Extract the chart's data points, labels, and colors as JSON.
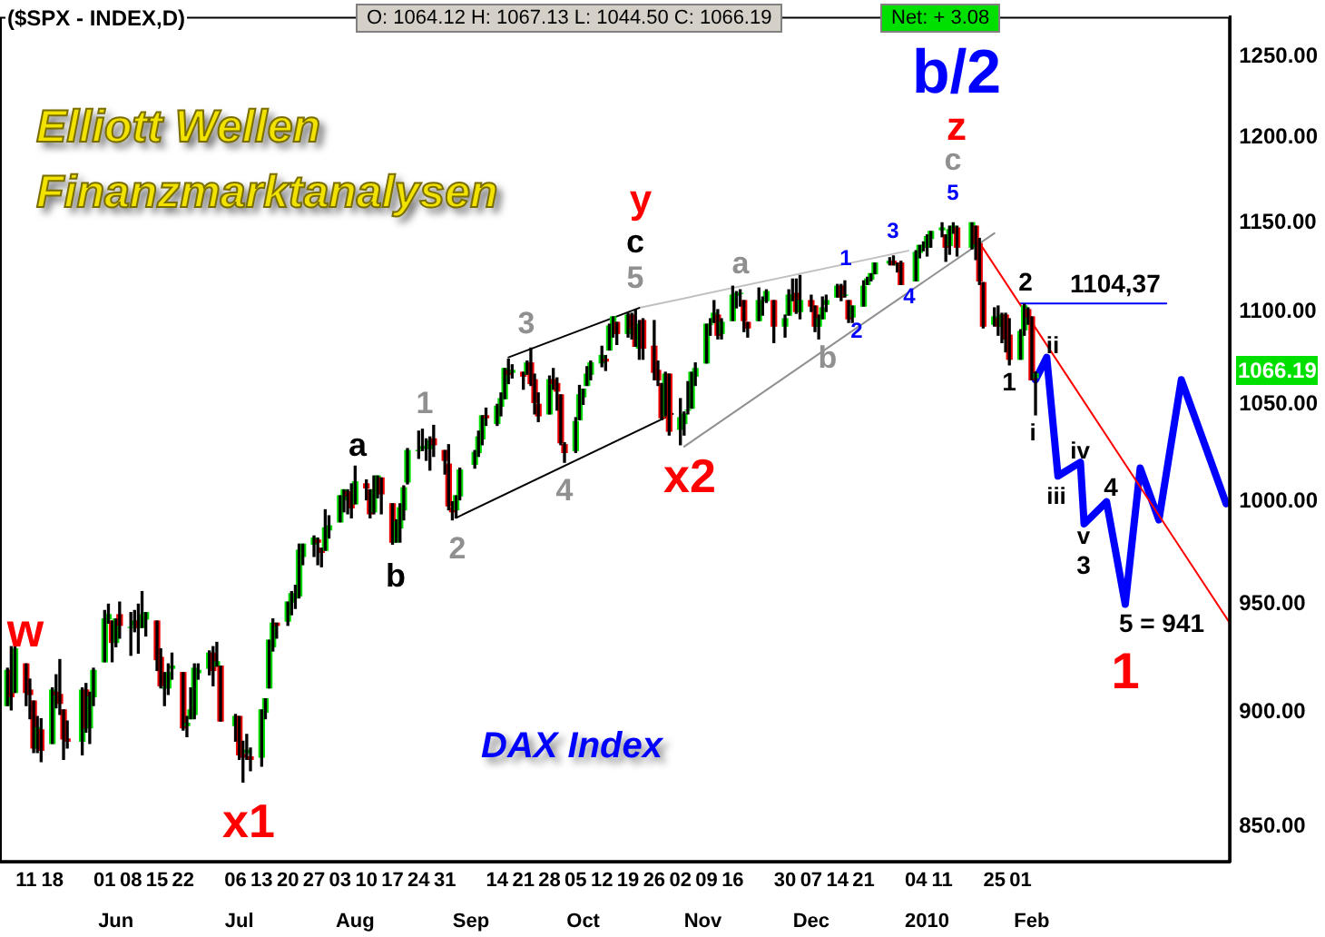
{
  "chart_data": {
    "type": "candlestick",
    "title": "($SPX - INDEX,D)",
    "x": [
      "2009-05-06",
      "2009-05-07",
      "2009-05-08",
      "2009-05-11",
      "2009-05-12",
      "2009-05-13",
      "2009-05-14",
      "2009-05-15",
      "2009-05-18",
      "2009-05-19",
      "2009-05-20",
      "2009-05-21",
      "2009-05-22",
      "2009-05-26",
      "2009-05-27",
      "2009-05-28",
      "2009-05-29",
      "2009-06-01",
      "2009-06-02",
      "2009-06-03",
      "2009-06-04",
      "2009-06-05",
      "2009-06-08",
      "2009-06-09",
      "2009-06-10",
      "2009-06-11",
      "2009-06-12",
      "2009-06-15",
      "2009-06-16",
      "2009-06-17",
      "2009-06-18",
      "2009-06-19",
      "2009-06-22",
      "2009-06-23",
      "2009-06-24",
      "2009-06-25",
      "2009-06-26",
      "2009-06-29",
      "2009-06-30",
      "2009-07-01",
      "2009-07-02",
      "2009-07-06",
      "2009-07-07",
      "2009-07-08",
      "2009-07-09",
      "2009-07-10",
      "2009-07-13",
      "2009-07-14",
      "2009-07-15",
      "2009-07-16",
      "2009-07-17",
      "2009-07-20",
      "2009-07-21",
      "2009-07-22",
      "2009-07-23",
      "2009-07-24",
      "2009-07-27",
      "2009-07-28",
      "2009-07-29",
      "2009-07-30",
      "2009-07-31",
      "2009-08-03",
      "2009-08-04",
      "2009-08-05",
      "2009-08-06",
      "2009-08-07",
      "2009-08-10",
      "2009-08-11",
      "2009-08-12",
      "2009-08-13",
      "2009-08-14",
      "2009-08-17",
      "2009-08-18",
      "2009-08-19",
      "2009-08-20",
      "2009-08-21",
      "2009-08-24",
      "2009-08-25",
      "2009-08-26",
      "2009-08-27",
      "2009-08-28",
      "2009-08-31",
      "2009-09-01",
      "2009-09-02",
      "2009-09-03",
      "2009-09-04",
      "2009-09-08",
      "2009-09-09",
      "2009-09-10",
      "2009-09-11",
      "2009-09-14",
      "2009-09-15",
      "2009-09-16",
      "2009-09-17",
      "2009-09-18",
      "2009-09-21",
      "2009-09-22",
      "2009-09-23",
      "2009-09-24",
      "2009-09-25",
      "2009-09-28",
      "2009-09-29",
      "2009-09-30",
      "2009-10-01",
      "2009-10-02",
      "2009-10-05",
      "2009-10-06",
      "2009-10-07",
      "2009-10-08",
      "2009-10-09",
      "2009-10-12",
      "2009-10-13",
      "2009-10-14",
      "2009-10-15",
      "2009-10-16",
      "2009-10-19",
      "2009-10-20",
      "2009-10-21",
      "2009-10-22",
      "2009-10-23",
      "2009-10-26",
      "2009-10-27",
      "2009-10-28",
      "2009-10-29",
      "2009-10-30",
      "2009-11-02",
      "2009-11-03",
      "2009-11-04",
      "2009-11-05",
      "2009-11-06",
      "2009-11-09",
      "2009-11-10",
      "2009-11-11",
      "2009-11-12",
      "2009-11-13",
      "2009-11-16",
      "2009-11-17",
      "2009-11-18",
      "2009-11-19",
      "2009-11-20",
      "2009-11-23",
      "2009-11-24",
      "2009-11-25",
      "2009-11-27",
      "2009-11-30",
      "2009-12-01",
      "2009-12-02",
      "2009-12-03",
      "2009-12-04",
      "2009-12-07",
      "2009-12-08",
      "2009-12-09",
      "2009-12-10",
      "2009-12-11",
      "2009-12-14",
      "2009-12-15",
      "2009-12-16",
      "2009-12-17",
      "2009-12-18",
      "2009-12-21",
      "2009-12-22",
      "2009-12-23",
      "2009-12-24",
      "2009-12-28",
      "2009-12-29",
      "2009-12-30",
      "2009-12-31",
      "2010-01-04",
      "2010-01-05",
      "2010-01-06",
      "2010-01-07",
      "2010-01-08",
      "2010-01-11",
      "2010-01-12",
      "2010-01-13",
      "2010-01-14",
      "2010-01-15",
      "2010-01-19",
      "2010-01-20",
      "2010-01-21",
      "2010-01-22",
      "2010-01-25",
      "2010-01-26",
      "2010-01-27",
      "2010-01-28",
      "2010-01-29",
      "2010-02-01",
      "2010-02-02",
      "2010-02-03",
      "2010-02-04",
      "2010-02-05"
    ],
    "ohlc": [
      [
        903,
        920,
        903,
        919
      ],
      [
        919,
        930,
        901,
        907
      ],
      [
        909,
        930,
        909,
        929
      ],
      [
        922,
        922,
        903,
        909
      ],
      [
        910,
        915,
        897,
        908
      ],
      [
        905,
        905,
        882,
        884
      ],
      [
        884,
        898,
        882,
        893
      ],
      [
        892,
        897,
        878,
        883
      ],
      [
        886,
        911,
        886,
        910
      ],
      [
        909,
        917,
        902,
        908
      ],
      [
        908,
        924,
        899,
        904
      ],
      [
        901,
        901,
        879,
        888
      ],
      [
        888,
        896,
        884,
        887
      ],
      [
        887,
        911,
        881,
        910
      ],
      [
        910,
        913,
        891,
        893
      ],
      [
        893,
        909,
        886,
        907
      ],
      [
        907,
        920,
        903,
        919
      ],
      [
        923,
        947,
        923,
        943
      ],
      [
        943,
        950,
        941,
        945
      ],
      [
        942,
        942,
        923,
        932
      ],
      [
        932,
        943,
        930,
        943
      ],
      [
        945,
        951,
        934,
        940
      ],
      [
        939,
        946,
        926,
        939
      ],
      [
        940,
        947,
        937,
        942
      ],
      [
        942,
        950,
        927,
        939
      ],
      [
        939,
        956,
        939,
        945
      ],
      [
        943,
        946,
        935,
        946
      ],
      [
        942,
        942,
        919,
        924
      ],
      [
        925,
        929,
        911,
        912
      ],
      [
        911,
        918,
        903,
        911
      ],
      [
        911,
        922,
        908,
        918
      ],
      [
        920,
        927,
        915,
        921
      ],
      [
        918,
        918,
        892,
        893
      ],
      [
        894,
        898,
        889,
        895
      ],
      [
        897,
        911,
        897,
        901
      ],
      [
        899,
        922,
        897,
        920
      ],
      [
        918,
        922,
        915,
        919
      ],
      [
        920,
        928,
        917,
        927
      ],
      [
        927,
        930,
        912,
        919
      ],
      [
        921,
        932,
        921,
        923
      ],
      [
        921,
        921,
        896,
        896
      ],
      [
        894,
        899,
        887,
        898
      ],
      [
        898,
        898,
        879,
        881
      ],
      [
        881,
        887,
        869,
        880
      ],
      [
        882,
        890,
        879,
        883
      ],
      [
        880,
        884,
        874,
        879
      ],
      [
        880,
        901,
        876,
        901
      ],
      [
        900,
        906,
        897,
        906
      ],
      [
        911,
        933,
        911,
        933
      ],
      [
        930,
        943,
        928,
        941
      ],
      [
        941,
        941,
        934,
        940
      ],
      [
        942,
        951,
        940,
        951
      ],
      [
        951,
        956,
        945,
        955
      ],
      [
        953,
        959,
        948,
        954
      ],
      [
        954,
        979,
        953,
        976
      ],
      [
        973,
        979,
        969,
        979
      ],
      [
        979,
        983,
        973,
        982
      ],
      [
        981,
        982,
        969,
        980
      ],
      [
        977,
        977,
        968,
        975
      ],
      [
        976,
        996,
        976,
        987
      ],
      [
        986,
        993,
        982,
        988
      ],
      [
        990,
        1003,
        990,
        1003
      ],
      [
        1001,
        1006,
        995,
        1006
      ],
      [
        1005,
        1006,
        994,
        1003
      ],
      [
        1004,
        1009,
        992,
        997
      ],
      [
        999,
        1018,
        999,
        1010
      ],
      [
        1009,
        1011,
        1001,
        1007
      ],
      [
        1006,
        1006,
        992,
        994
      ],
      [
        995,
        1013,
        994,
        1006
      ],
      [
        1006,
        1013,
        1002,
        1013
      ],
      [
        1012,
        1012,
        994,
        1004
      ],
      [
        999,
        999,
        979,
        980
      ],
      [
        980,
        991,
        980,
        990
      ],
      [
        987,
        999,
        980,
        997
      ],
      [
        996,
        1008,
        991,
        1007
      ],
      [
        1010,
        1027,
        1009,
        1026
      ],
      [
        1026,
        1036,
        1022,
        1026
      ],
      [
        1027,
        1037,
        1026,
        1028
      ],
      [
        1028,
        1032,
        1021,
        1028
      ],
      [
        1027,
        1033,
        1016,
        1031
      ],
      [
        1032,
        1039,
        1023,
        1029
      ],
      [
        1026,
        1026,
        1014,
        1021
      ],
      [
        1019,
        1029,
        996,
        998
      ],
      [
        997,
        1000,
        991,
        995
      ],
      [
        996,
        1003,
        992,
        1003
      ],
      [
        1003,
        1017,
        1001,
        1016
      ],
      [
        1019,
        1026,
        1017,
        1025
      ],
      [
        1025,
        1036,
        1023,
        1033
      ],
      [
        1032,
        1044,
        1029,
        1044
      ],
      [
        1044,
        1048,
        1039,
        1043
      ],
      [
        1040,
        1050,
        1039,
        1049
      ],
      [
        1049,
        1056,
        1044,
        1053
      ],
      [
        1053,
        1069,
        1053,
        1069
      ],
      [
        1068,
        1074,
        1061,
        1066
      ],
      [
        1067,
        1071,
        1064,
        1068
      ],
      [
        1067,
        1067,
        1058,
        1065
      ],
      [
        1066,
        1073,
        1066,
        1072
      ],
      [
        1072,
        1080,
        1060,
        1061
      ],
      [
        1063,
        1066,
        1045,
        1051
      ],
      [
        1050,
        1056,
        1041,
        1044
      ],
      [
        1045,
        1065,
        1045,
        1063
      ],
      [
        1063,
        1069,
        1058,
        1061
      ],
      [
        1061,
        1064,
        1047,
        1057
      ],
      [
        1055,
        1055,
        1029,
        1030
      ],
      [
        1029,
        1030,
        1020,
        1025
      ],
      [
        1026,
        1043,
        1025,
        1041
      ],
      [
        1042,
        1060,
        1042,
        1055
      ],
      [
        1054,
        1058,
        1050,
        1058
      ],
      [
        1060,
        1070,
        1060,
        1066
      ],
      [
        1066,
        1073,
        1063,
        1072
      ],
      [
        1072,
        1081,
        1070,
        1076
      ],
      [
        1074,
        1076,
        1068,
        1073
      ],
      [
        1079,
        1093,
        1079,
        1092
      ],
      [
        1090,
        1097,
        1086,
        1097
      ],
      [
        1094,
        1094,
        1082,
        1088
      ],
      [
        1088,
        1099,
        1086,
        1098
      ],
      [
        1098,
        1099,
        1085,
        1091
      ],
      [
        1091,
        1101,
        1081,
        1081
      ],
      [
        1080,
        1095,
        1074,
        1093
      ],
      [
        1095,
        1096,
        1074,
        1080
      ],
      [
        1081,
        1095,
        1063,
        1067
      ],
      [
        1068,
        1073,
        1060,
        1063
      ],
      [
        1061,
        1061,
        1042,
        1043
      ],
      [
        1044,
        1067,
        1044,
        1066
      ],
      [
        1066,
        1066,
        1034,
        1036
      ],
      [
        1037,
        1053,
        1029,
        1043
      ],
      [
        1040,
        1046,
        1034,
        1045
      ],
      [
        1047,
        1062,
        1045,
        1047
      ],
      [
        1048,
        1067,
        1048,
        1067
      ],
      [
        1065,
        1072,
        1060,
        1069
      ],
      [
        1072,
        1093,
        1072,
        1093
      ],
      [
        1093,
        1096,
        1087,
        1093
      ],
      [
        1094,
        1106,
        1094,
        1099
      ],
      [
        1098,
        1101,
        1085,
        1087
      ],
      [
        1088,
        1096,
        1085,
        1094
      ],
      [
        1095,
        1114,
        1095,
        1109
      ],
      [
        1109,
        1111,
        1102,
        1110
      ],
      [
        1110,
        1112,
        1103,
        1110
      ],
      [
        1106,
        1106,
        1089,
        1095
      ],
      [
        1094,
        1094,
        1086,
        1091
      ],
      [
        1095,
        1113,
        1095,
        1106
      ],
      [
        1106,
        1108,
        1098,
        1106
      ],
      [
        1106,
        1112,
        1105,
        1111
      ],
      [
        1106,
        1106,
        1083,
        1092
      ],
      [
        1092,
        1098,
        1086,
        1096
      ],
      [
        1098,
        1112,
        1098,
        1109
      ],
      [
        1109,
        1118,
        1106,
        1109
      ],
      [
        1110,
        1118,
        1099,
        1100
      ],
      [
        1100,
        1120,
        1096,
        1106
      ],
      [
        1106,
        1109,
        1100,
        1103
      ],
      [
        1103,
        1103,
        1089,
        1092
      ],
      [
        1092,
        1098,
        1085,
        1096
      ],
      [
        1096,
        1108,
        1096,
        1102
      ],
      [
        1104,
        1109,
        1100,
        1106
      ],
      [
        1108,
        1115,
        1108,
        1114
      ],
      [
        1114,
        1115,
        1106,
        1108
      ],
      [
        1109,
        1117,
        1108,
        1109
      ],
      [
        1106,
        1106,
        1094,
        1096
      ],
      [
        1097,
        1103,
        1094,
        1103
      ],
      [
        1103,
        1117,
        1103,
        1114
      ],
      [
        1115,
        1119,
        1115,
        1118
      ],
      [
        1118,
        1121,
        1117,
        1121
      ],
      [
        1121,
        1127,
        1121,
        1127
      ],
      [
        1127,
        1130,
        1126,
        1128
      ],
      [
        1128,
        1131,
        1126,
        1126
      ],
      [
        1126,
        1127,
        1122,
        1126
      ],
      [
        1127,
        1128,
        1115,
        1115
      ],
      [
        1117,
        1134,
        1117,
        1133
      ],
      [
        1133,
        1137,
        1130,
        1137
      ],
      [
        1136,
        1139,
        1134,
        1137
      ],
      [
        1136,
        1143,
        1131,
        1142
      ],
      [
        1141,
        1145,
        1136,
        1145
      ],
      [
        1146,
        1150,
        1142,
        1147
      ],
      [
        1143,
        1143,
        1128,
        1136
      ],
      [
        1137,
        1148,
        1132,
        1146
      ],
      [
        1146,
        1150,
        1144,
        1148
      ],
      [
        1147,
        1148,
        1131,
        1136
      ],
      [
        1136,
        1150,
        1135,
        1150
      ],
      [
        1148,
        1148,
        1129,
        1138
      ],
      [
        1138,
        1141,
        1115,
        1117
      ],
      [
        1116,
        1116,
        1091,
        1092
      ],
      [
        1093,
        1102,
        1092,
        1097
      ],
      [
        1096,
        1103,
        1087,
        1092
      ],
      [
        1092,
        1099,
        1083,
        1098
      ],
      [
        1098,
        1099,
        1078,
        1085
      ],
      [
        1087,
        1096,
        1071,
        1074
      ],
      [
        1074,
        1090,
        1074,
        1089
      ],
      [
        1090,
        1104,
        1087,
        1103
      ],
      [
        1101,
        1102,
        1093,
        1097
      ],
      [
        1097,
        1097,
        1063,
        1063
      ],
      [
        1064.12,
        1067.13,
        1044.5,
        1066.19
      ]
    ],
    "series": [
      {
        "type": "line",
        "color": "#000000",
        "x": [
          "2009-09-17",
          "2009-10-22"
        ],
        "values": [
          1075,
          1102
        ]
      },
      {
        "type": "line",
        "color": "#000000",
        "x": [
          "2009-09-03",
          "2009-10-31"
        ],
        "values": [
          992,
          1045
        ]
      },
      {
        "type": "line",
        "color": "#c0c0c0",
        "x": [
          "2009-10-22",
          "2010-01-02"
        ],
        "values": [
          1102,
          1134
        ]
      },
      {
        "type": "line",
        "color": "#909090",
        "x": [
          "2009-11-03",
          "2010-01-25"
        ],
        "values": [
          1028,
          1144
        ]
      },
      {
        "type": "line",
        "color": "#ff0000",
        "x": [
          "2010-01-19",
          "2010-03-29"
        ],
        "values": [
          1145,
          941
        ]
      },
      {
        "type": "line",
        "color": "#0000ff",
        "x": [
          "2010-02-05",
          "2010-02-08",
          "2010-02-11",
          "2010-02-17",
          "2010-02-18",
          "2010-02-24",
          "2010-03-01",
          "2010-03-05",
          "2010-03-10",
          "2010-03-16",
          "2010-03-28"
        ],
        "values": [
          1063,
          1075,
          1013,
          1020,
          989,
          1000,
          950,
          1017,
          991,
          1063,
          999
        ]
      },
      {
        "type": "line",
        "name": "1104,37",
        "color": "#0000ff",
        "x": [
          "2010-02-01",
          "2010-03-12"
        ],
        "values": [
          1104.37,
          1104.37
        ]
      }
    ],
    "xlim": [
      "2009-05-04",
      "2010-03-29"
    ],
    "xticks": [
      {
        "value": "2009-05-11",
        "label": "11"
      },
      {
        "value": "2009-05-18",
        "label": "18"
      },
      {
        "value": "2009-06-01",
        "label": "01"
      },
      {
        "value": "2009-06-08",
        "label": "08"
      },
      {
        "value": "2009-06-15",
        "label": "15"
      },
      {
        "value": "2009-06-22",
        "label": "22"
      },
      {
        "value": "2009-07-06",
        "label": "06"
      },
      {
        "value": "2009-07-13",
        "label": "13"
      },
      {
        "value": "2009-07-20",
        "label": "20"
      },
      {
        "value": "2009-07-27",
        "label": "27"
      },
      {
        "value": "2009-08-03",
        "label": "03"
      },
      {
        "value": "2009-08-10",
        "label": "10"
      },
      {
        "value": "2009-08-17",
        "label": "17"
      },
      {
        "value": "2009-08-24",
        "label": "24"
      },
      {
        "value": "2009-08-31",
        "label": "31"
      },
      {
        "value": "2009-09-14",
        "label": "14"
      },
      {
        "value": "2009-09-21",
        "label": "21"
      },
      {
        "value": "2009-09-28",
        "label": "28"
      },
      {
        "value": "2009-10-05",
        "label": "05"
      },
      {
        "value": "2009-10-12",
        "label": "12"
      },
      {
        "value": "2009-10-19",
        "label": "19"
      },
      {
        "value": "2009-10-26",
        "label": "26"
      },
      {
        "value": "2009-11-02",
        "label": "02"
      },
      {
        "value": "2009-11-09",
        "label": "09"
      },
      {
        "value": "2009-11-16",
        "label": "16"
      },
      {
        "value": "2009-11-30",
        "label": "30"
      },
      {
        "value": "2009-12-07",
        "label": "07"
      },
      {
        "value": "2009-12-14",
        "label": "14"
      },
      {
        "value": "2009-12-21",
        "label": "21"
      },
      {
        "value": "2010-01-04",
        "label": "04"
      },
      {
        "value": "2010-01-11",
        "label": "11"
      },
      {
        "value": "2010-01-25",
        "label": "25"
      },
      {
        "value": "2010-02-01",
        "label": "01"
      }
    ],
    "x2lim": [
      "2009-05-04",
      "2010-03-29"
    ],
    "x2ticks": [
      {
        "value": "2009-06-04",
        "label": "Jun"
      },
      {
        "value": "2009-07-07",
        "label": "Jul"
      },
      {
        "value": "2009-08-07",
        "label": "Aug"
      },
      {
        "value": "2009-09-07",
        "label": "Sep"
      },
      {
        "value": "2009-10-07",
        "label": "Oct"
      },
      {
        "value": "2009-11-08",
        "label": "Nov"
      },
      {
        "value": "2009-12-07",
        "label": "Dec"
      },
      {
        "value": "2010-01-07",
        "label": "2010"
      },
      {
        "value": "2010-02-04",
        "label": "Feb"
      }
    ],
    "log": true,
    "ylim": [
      835,
      1275
    ],
    "yticks": [
      {
        "value": 850,
        "label": "850.00"
      },
      {
        "value": 900,
        "label": "900.00"
      },
      {
        "value": 950,
        "label": "950.00"
      },
      {
        "value": 1000,
        "label": "1000.00"
      },
      {
        "value": 1050,
        "label": "1050.00"
      },
      {
        "value": 1100,
        "label": "1100.00"
      },
      {
        "value": 1150,
        "label": "1150.00"
      },
      {
        "value": 1200,
        "label": "1200.00"
      },
      {
        "value": 1250,
        "label": "1250.00"
      }
    ],
    "annotations": [
      "O: 1064.12   H: 1067.13   L: 1044.50   C: 1066.19",
      "Net: + 3.08",
      "Elliott Wellen",
      "Finanzmarktanalysen",
      "DAX Index",
      "1066.19",
      "w",
      "x1",
      "a",
      "b",
      "1",
      "2",
      "3",
      "4",
      "5",
      "c",
      "y",
      "x2",
      "a",
      "b",
      "1",
      "2",
      "3",
      "4",
      "5",
      "c",
      "z",
      "b/2",
      "2",
      "1",
      "i",
      "ii",
      "iii",
      "iv",
      "v",
      "3",
      "4",
      "5 = 941",
      "1"
    ]
  }
}
